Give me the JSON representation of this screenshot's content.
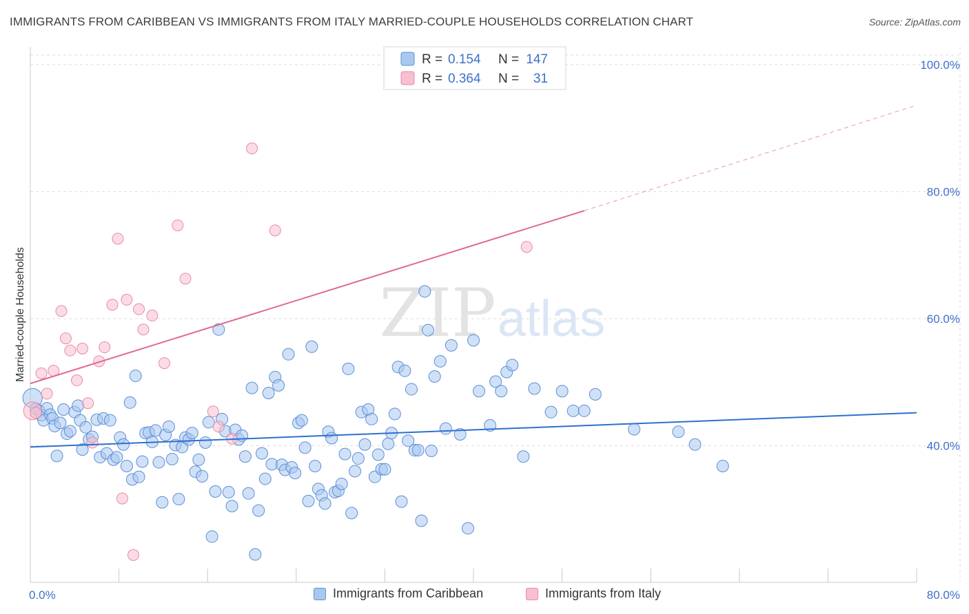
{
  "header": {
    "title": "IMMIGRANTS FROM CARIBBEAN VS IMMIGRANTS FROM ITALY MARRIED-COUPLE HOUSEHOLDS CORRELATION CHART",
    "source": "Source: ZipAtlas.com"
  },
  "watermark": {
    "zip": "ZIP",
    "atlas": "atlas"
  },
  "legend": {
    "rows": [
      {
        "r_label": "R =",
        "r_value": "0.154",
        "n_label": "N =",
        "n_value": "147"
      },
      {
        "r_label": "R =",
        "r_value": "0.364",
        "n_label": "N =",
        "n_value": "31"
      }
    ]
  },
  "bottom_legend": {
    "caribbean": "Immigrants from Caribbean",
    "italy": "Immigrants from Italy"
  },
  "colors": {
    "caribbean_fill": "#a9c8f0",
    "caribbean_stroke": "#5b8fd6",
    "caribbean_line": "#2d6fcf",
    "italy_fill": "#f7bfcf",
    "italy_stroke": "#e88aa5",
    "italy_line": "#e0698f",
    "tick_text": "#3f6fc9",
    "grid": "#dddddd"
  },
  "chart_data": {
    "type": "scatter",
    "title": "IMMIGRANTS FROM CARIBBEAN VS IMMIGRANTS FROM ITALY MARRIED-COUPLE HOUSEHOLDS CORRELATION CHART",
    "xlabel": "",
    "ylabel": "Married-couple Households",
    "xlim": [
      0,
      80
    ],
    "ylim": [
      18.5,
      101.5
    ],
    "x_tick_labels": [
      {
        "value": 0,
        "label": "0.0%"
      },
      {
        "value": 80,
        "label": "80.0%"
      }
    ],
    "y_tick_labels": [
      {
        "value": 40,
        "label": "40.0%"
      },
      {
        "value": 60,
        "label": "60.0%"
      },
      {
        "value": 80,
        "label": "80.0%"
      },
      {
        "value": 100,
        "label": "100.0%"
      }
    ],
    "grid": true,
    "series": [
      {
        "name": "Immigrants from Caribbean",
        "R": 0.154,
        "N": 147,
        "trend": {
          "x0": 0,
          "y0": 39.8,
          "x1": 80,
          "y1": 45.2
        },
        "points": [
          [
            0.2,
            47.5
          ],
          [
            0.5,
            45.8
          ],
          [
            0.8,
            45.5
          ],
          [
            1.0,
            44.8
          ],
          [
            1.2,
            44.0
          ],
          [
            1.5,
            45.9
          ],
          [
            1.8,
            44.9
          ],
          [
            2.0,
            44.3
          ],
          [
            2.2,
            43.1
          ],
          [
            2.4,
            38.4
          ],
          [
            2.7,
            43.6
          ],
          [
            3.0,
            45.7
          ],
          [
            3.3,
            41.9
          ],
          [
            3.6,
            42.3
          ],
          [
            4.0,
            45.3
          ],
          [
            4.3,
            46.3
          ],
          [
            4.5,
            44.0
          ],
          [
            4.7,
            39.4
          ],
          [
            5.0,
            42.9
          ],
          [
            5.3,
            41.0
          ],
          [
            5.6,
            41.4
          ],
          [
            6.0,
            44.1
          ],
          [
            6.3,
            38.2
          ],
          [
            6.6,
            44.3
          ],
          [
            6.9,
            38.8
          ],
          [
            7.2,
            44.0
          ],
          [
            7.5,
            37.8
          ],
          [
            7.8,
            38.2
          ],
          [
            8.1,
            41.3
          ],
          [
            8.4,
            40.2
          ],
          [
            8.7,
            36.8
          ],
          [
            9.0,
            46.8
          ],
          [
            9.2,
            34.7
          ],
          [
            9.5,
            51.0
          ],
          [
            9.8,
            35.1
          ],
          [
            10.1,
            37.5
          ],
          [
            10.4,
            42.0
          ],
          [
            10.7,
            42.1
          ],
          [
            11.0,
            40.6
          ],
          [
            11.3,
            42.4
          ],
          [
            11.6,
            37.4
          ],
          [
            11.9,
            31.1
          ],
          [
            12.2,
            41.7
          ],
          [
            12.5,
            43.0
          ],
          [
            12.8,
            37.9
          ],
          [
            13.1,
            40.1
          ],
          [
            13.4,
            31.6
          ],
          [
            13.7,
            39.8
          ],
          [
            14.0,
            41.3
          ],
          [
            14.3,
            41.0
          ],
          [
            14.6,
            42.0
          ],
          [
            14.9,
            35.9
          ],
          [
            15.2,
            37.8
          ],
          [
            15.5,
            35.2
          ],
          [
            15.8,
            40.5
          ],
          [
            16.1,
            43.7
          ],
          [
            16.4,
            25.7
          ],
          [
            16.7,
            32.8
          ],
          [
            17.0,
            58.3
          ],
          [
            17.3,
            44.2
          ],
          [
            17.6,
            42.3
          ],
          [
            17.9,
            32.7
          ],
          [
            18.2,
            30.5
          ],
          [
            18.5,
            42.5
          ],
          [
            18.8,
            41.0
          ],
          [
            19.1,
            41.6
          ],
          [
            19.4,
            38.3
          ],
          [
            19.7,
            32.5
          ],
          [
            20.0,
            49.1
          ],
          [
            20.3,
            22.9
          ],
          [
            20.6,
            29.8
          ],
          [
            20.9,
            38.8
          ],
          [
            21.2,
            34.8
          ],
          [
            21.5,
            48.3
          ],
          [
            21.8,
            37.1
          ],
          [
            22.1,
            50.8
          ],
          [
            22.4,
            49.5
          ],
          [
            22.7,
            37.0
          ],
          [
            23.0,
            36.2
          ],
          [
            23.3,
            54.4
          ],
          [
            23.6,
            36.6
          ],
          [
            23.9,
            35.7
          ],
          [
            24.2,
            43.6
          ],
          [
            24.5,
            44.0
          ],
          [
            24.8,
            39.7
          ],
          [
            25.1,
            31.3
          ],
          [
            25.4,
            55.6
          ],
          [
            25.7,
            36.8
          ],
          [
            26.0,
            33.2
          ],
          [
            26.3,
            32.2
          ],
          [
            26.6,
            30.9
          ],
          [
            26.9,
            42.2
          ],
          [
            27.2,
            41.2
          ],
          [
            27.5,
            32.7
          ],
          [
            27.8,
            32.9
          ],
          [
            28.1,
            34.0
          ],
          [
            28.4,
            38.7
          ],
          [
            28.7,
            52.1
          ],
          [
            29.0,
            29.4
          ],
          [
            29.3,
            36.0
          ],
          [
            29.6,
            38.0
          ],
          [
            29.9,
            45.3
          ],
          [
            30.2,
            40.2
          ],
          [
            30.5,
            45.7
          ],
          [
            30.8,
            44.2
          ],
          [
            31.1,
            35.1
          ],
          [
            31.4,
            38.6
          ],
          [
            31.7,
            36.3
          ],
          [
            32.0,
            36.3
          ],
          [
            32.3,
            40.3
          ],
          [
            32.6,
            42.0
          ],
          [
            32.9,
            45.0
          ],
          [
            33.2,
            52.4
          ],
          [
            33.5,
            31.2
          ],
          [
            33.8,
            51.8
          ],
          [
            34.1,
            40.8
          ],
          [
            34.4,
            48.9
          ],
          [
            34.7,
            39.3
          ],
          [
            35.0,
            39.3
          ],
          [
            35.3,
            28.2
          ],
          [
            35.6,
            64.3
          ],
          [
            35.9,
            58.2
          ],
          [
            36.2,
            39.2
          ],
          [
            36.5,
            50.9
          ],
          [
            37.0,
            53.3
          ],
          [
            37.5,
            42.7
          ],
          [
            38.0,
            55.8
          ],
          [
            38.8,
            41.8
          ],
          [
            39.5,
            27.0
          ],
          [
            40.0,
            56.6
          ],
          [
            40.5,
            48.6
          ],
          [
            41.5,
            43.2
          ],
          [
            42.0,
            50.1
          ],
          [
            42.5,
            48.6
          ],
          [
            43.0,
            51.6
          ],
          [
            43.5,
            52.7
          ],
          [
            44.5,
            38.3
          ],
          [
            45.5,
            49.0
          ],
          [
            47.0,
            45.3
          ],
          [
            48.0,
            48.6
          ],
          [
            49.0,
            45.5
          ],
          [
            50.0,
            45.5
          ],
          [
            51.0,
            48.1
          ],
          [
            54.5,
            42.6
          ],
          [
            58.5,
            42.2
          ],
          [
            60.0,
            40.2
          ],
          [
            62.5,
            36.8
          ]
        ]
      },
      {
        "name": "Immigrants from Italy",
        "R": 0.364,
        "N": 31,
        "trend": {
          "x0": 0,
          "y0": 49.8,
          "x1": 50,
          "y1": 77.0
        },
        "trend_dashed": {
          "x0": 50,
          "y0": 77.0,
          "x1": 80,
          "y1": 93.6
        },
        "points": [
          [
            0.2,
            45.5
          ],
          [
            0.5,
            45.2
          ],
          [
            1.0,
            51.4
          ],
          [
            1.5,
            48.2
          ],
          [
            2.1,
            51.8
          ],
          [
            2.8,
            61.2
          ],
          [
            3.2,
            56.9
          ],
          [
            3.6,
            55.0
          ],
          [
            4.2,
            50.3
          ],
          [
            4.7,
            55.3
          ],
          [
            5.2,
            46.7
          ],
          [
            5.6,
            40.5
          ],
          [
            6.2,
            53.3
          ],
          [
            6.7,
            55.5
          ],
          [
            7.4,
            62.2
          ],
          [
            7.9,
            72.6
          ],
          [
            8.3,
            31.7
          ],
          [
            8.7,
            63.0
          ],
          [
            9.3,
            22.8
          ],
          [
            9.8,
            61.5
          ],
          [
            10.2,
            58.3
          ],
          [
            11.0,
            60.5
          ],
          [
            12.1,
            53.0
          ],
          [
            13.3,
            74.7
          ],
          [
            14.0,
            66.3
          ],
          [
            16.5,
            45.4
          ],
          [
            17.0,
            43.0
          ],
          [
            18.2,
            41.1
          ],
          [
            20.0,
            86.8
          ],
          [
            22.1,
            73.9
          ],
          [
            44.8,
            71.3
          ]
        ]
      }
    ]
  }
}
